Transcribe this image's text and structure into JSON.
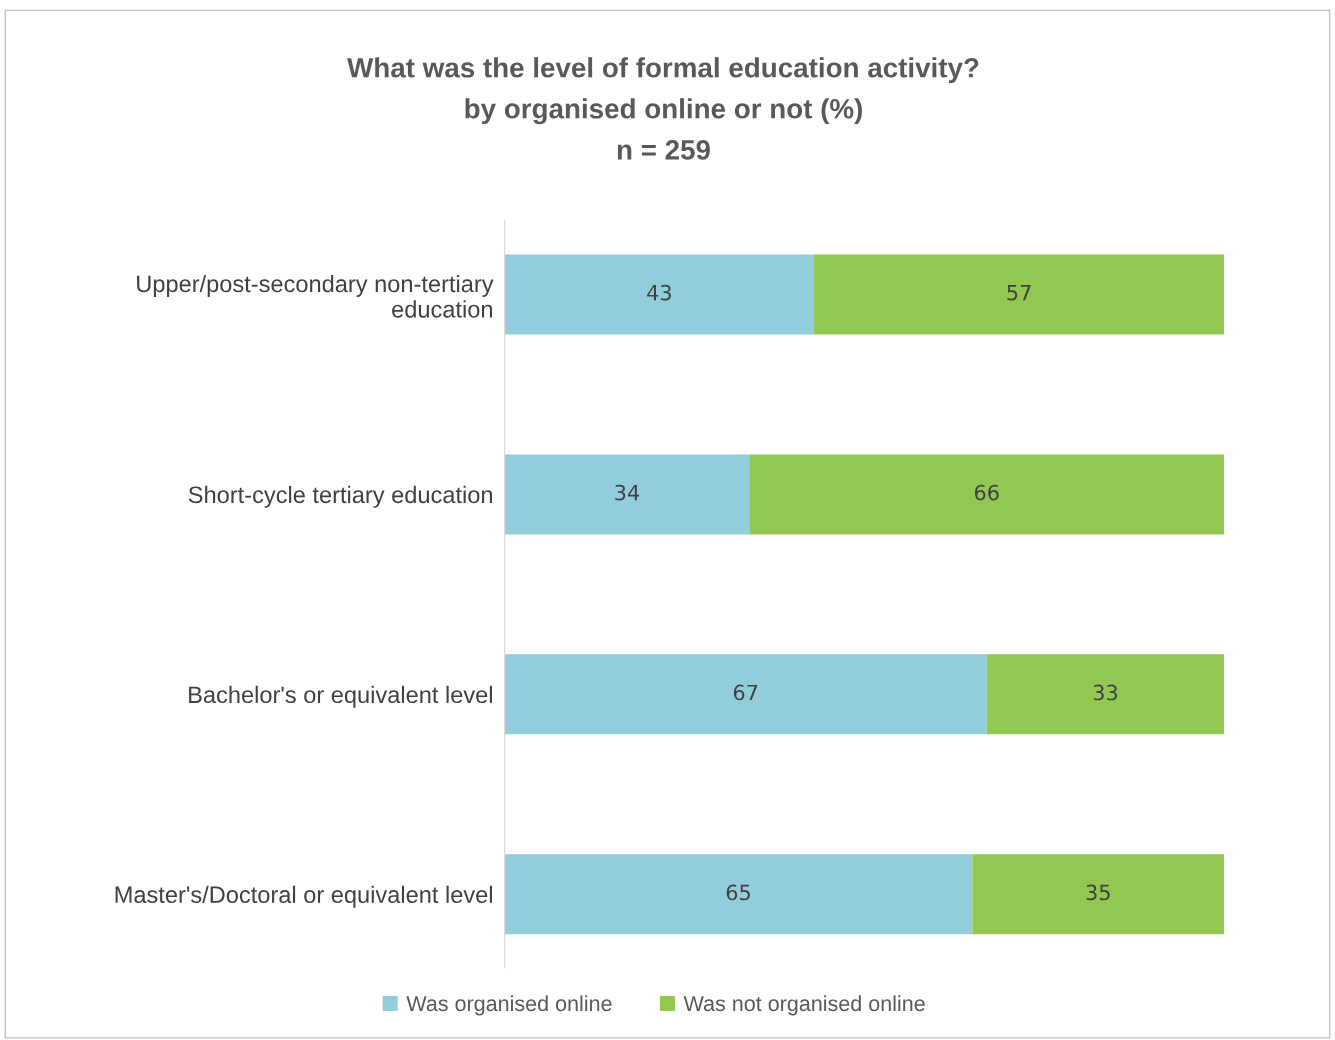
{
  "chart_data": {
    "type": "bar",
    "orientation": "horizontal",
    "stacked": true,
    "title": "What was the level of formal education activity?\nby organised online or not (%)\nn = 259",
    "categories": [
      "Upper/post-secondary non-tertiary\neducation",
      "Short-cycle tertiary education",
      "Bachelor's or equivalent level",
      "Master's/Doctoral or equivalent level"
    ],
    "series": [
      {
        "name": "Was organised online",
        "color": "#92cddc",
        "values": [
          43,
          34,
          67,
          65
        ]
      },
      {
        "name": "Was not organised online",
        "color": "#92c852",
        "values": [
          57,
          66,
          33,
          35
        ]
      }
    ],
    "xlim": [
      0,
      100
    ],
    "data_labels": true,
    "legend": "bottom",
    "grid": false,
    "tick_labels": "y"
  }
}
